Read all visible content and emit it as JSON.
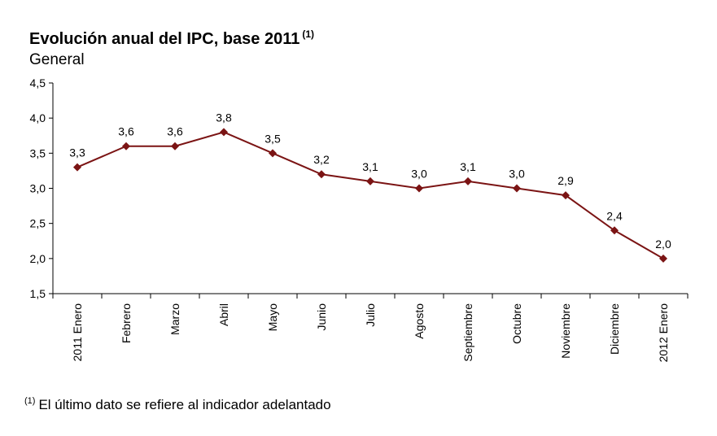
{
  "chart_data": {
    "type": "line",
    "title": "Evolución anual del IPC, base 2011",
    "title_note": "(1)",
    "subtitle": "General",
    "categories": [
      "2011 Enero",
      "Febrero",
      "Marzo",
      "Abril",
      "Mayo",
      "Junio",
      "Julio",
      "Agosto",
      "Septiembre",
      "Octubre",
      "Noviembre",
      "Diciembre",
      "2012 Enero"
    ],
    "values": [
      3.3,
      3.6,
      3.6,
      3.8,
      3.5,
      3.2,
      3.1,
      3.0,
      3.1,
      3.0,
      2.9,
      2.4,
      2.0
    ],
    "data_labels": [
      "3,3",
      "3,6",
      "3,6",
      "3,8",
      "3,5",
      "3,2",
      "3,1",
      "3,0",
      "3,1",
      "3,0",
      "2,9",
      "2,4",
      "2,0"
    ],
    "y_ticks": [
      "4,5",
      "4,0",
      "3,5",
      "3,0",
      "2,5",
      "2,0",
      "1,5"
    ],
    "ylim": [
      1.5,
      4.5
    ],
    "xlabel": "",
    "ylabel": "",
    "grid": false,
    "legend": "none",
    "color": "#7b1414"
  },
  "footnote": {
    "marker": "(1)",
    "text": "El último dato se refiere al indicador adelantado"
  }
}
